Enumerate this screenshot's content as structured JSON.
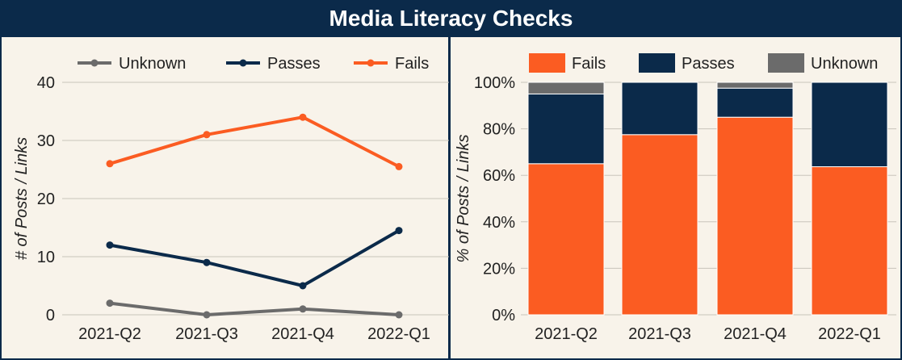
{
  "title": "Media Literacy Checks",
  "colors": {
    "navy": "#0b2a4a",
    "fails": "#fb5c22",
    "passes": "#0b2a4a",
    "unknown": "#6b6b6b",
    "background": "#f8f3ea"
  },
  "chart_data": [
    {
      "type": "line",
      "categories": [
        "2021-Q2",
        "2021-Q3",
        "2021-Q4",
        "2022-Q1"
      ],
      "ylabel": "# of Posts / Links",
      "ylim": [
        0,
        40
      ],
      "yticks": [
        "0",
        "10",
        "20",
        "30",
        "40"
      ],
      "grid": true,
      "legend": "top",
      "series": [
        {
          "name": "Unknown",
          "color": "#6b6b6b",
          "values": [
            2,
            0,
            1,
            0
          ]
        },
        {
          "name": "Passes",
          "color": "#0b2a4a",
          "values": [
            12,
            9,
            5,
            14.5
          ]
        },
        {
          "name": "Fails",
          "color": "#fb5c22",
          "values": [
            26,
            31,
            34,
            25.5
          ]
        }
      ]
    },
    {
      "type": "bar",
      "stacked": true,
      "categories": [
        "2021-Q2",
        "2021-Q3",
        "2021-Q4",
        "2022-Q1"
      ],
      "ylabel": "% of Posts / Links",
      "ylim": [
        0,
        100
      ],
      "yticks": [
        "0%",
        "20%",
        "40%",
        "60%",
        "80%",
        "100%"
      ],
      "grid": true,
      "legend": "top",
      "series": [
        {
          "name": "Fails",
          "color": "#fb5c22",
          "values": [
            65,
            77.5,
            85,
            63.7
          ]
        },
        {
          "name": "Passes",
          "color": "#0b2a4a",
          "values": [
            30,
            22.5,
            12.5,
            36.3
          ]
        },
        {
          "name": "Unknown",
          "color": "#6b6b6b",
          "values": [
            5,
            0,
            2.5,
            0
          ]
        }
      ]
    }
  ]
}
